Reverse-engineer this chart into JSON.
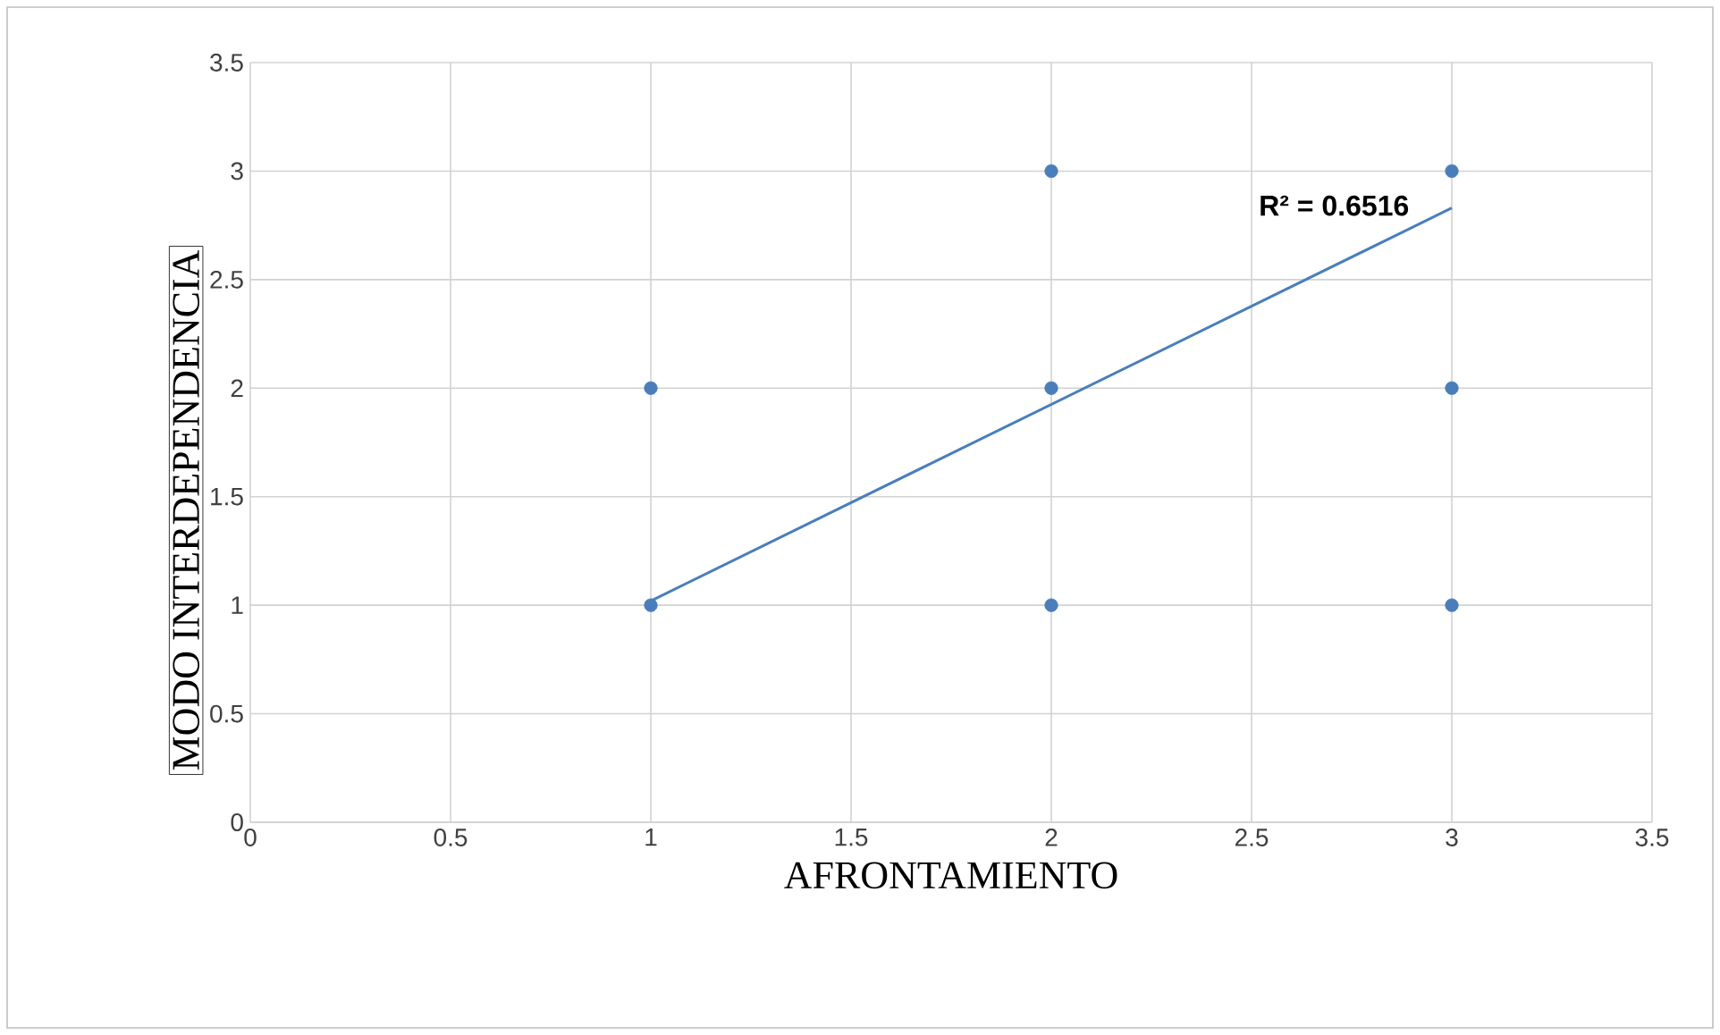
{
  "chart_data": {
    "type": "scatter",
    "xlabel": "AFRONTAMIENTO",
    "ylabel": "MODO INTERDEPENDENCIA",
    "xlim": [
      0,
      3.5
    ],
    "ylim": [
      0,
      3.5
    ],
    "xticks": [
      0,
      0.5,
      1,
      1.5,
      2,
      2.5,
      3,
      3.5
    ],
    "yticks": [
      0,
      0.5,
      1,
      1.5,
      2,
      2.5,
      3,
      3.5
    ],
    "grid": true,
    "annotations": [
      "R² = 0.6516"
    ],
    "series": [
      {
        "color": "#4a7ebb",
        "marker": "circle",
        "x": [
          1,
          1,
          2,
          2,
          2,
          3,
          3,
          3
        ],
        "values": [
          1,
          2,
          1,
          2,
          3,
          1,
          2,
          3
        ]
      },
      {
        "type": "line",
        "color": "#4a7ebb",
        "marker": "none",
        "x": [
          1,
          3
        ],
        "values": [
          1.02,
          2.83
        ]
      }
    ]
  }
}
